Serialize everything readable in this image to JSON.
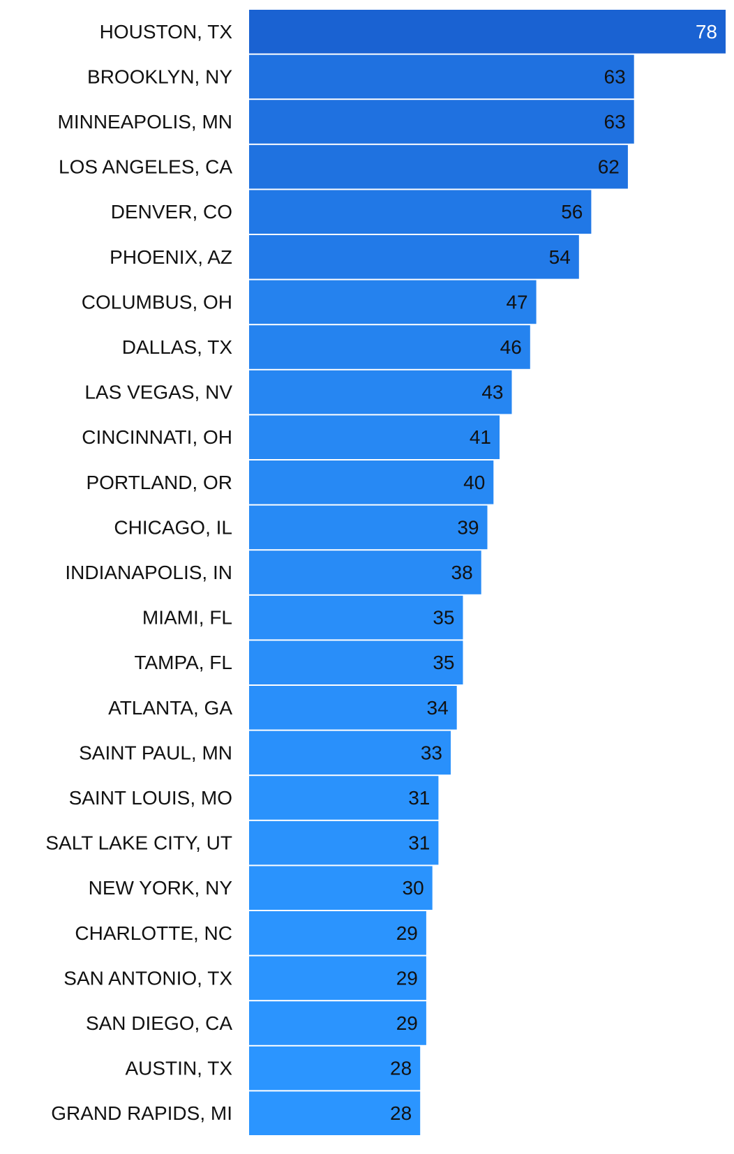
{
  "chart_data": {
    "type": "bar",
    "orientation": "horizontal",
    "categories": [
      "HOUSTON, TX",
      "BROOKLYN, NY",
      "MINNEAPOLIS, MN",
      "LOS ANGELES, CA",
      "DENVER, CO",
      "PHOENIX, AZ",
      "COLUMBUS, OH",
      "DALLAS, TX",
      "LAS VEGAS, NV",
      "CINCINNATI, OH",
      "PORTLAND, OR",
      "CHICAGO, IL",
      "INDIANAPOLIS, IN",
      "MIAMI, FL",
      "TAMPA, FL",
      "ATLANTA, GA",
      "SAINT PAUL, MN",
      "SAINT LOUIS, MO",
      "SALT LAKE CITY, UT",
      "NEW YORK, NY",
      "CHARLOTTE, NC",
      "SAN ANTONIO, TX",
      "SAN DIEGO, CA",
      "AUSTIN, TX",
      "GRAND RAPIDS, MI"
    ],
    "values": [
      78,
      63,
      63,
      62,
      56,
      54,
      47,
      46,
      43,
      41,
      40,
      39,
      38,
      35,
      35,
      34,
      33,
      31,
      31,
      30,
      29,
      29,
      29,
      28,
      28
    ],
    "title": "",
    "xlabel": "",
    "ylabel": "",
    "xlim": [
      0,
      78
    ],
    "grid": false,
    "legend": "none",
    "data_labels": "inside-end",
    "colors": {
      "bar_max": "#1a62d2",
      "bar_min": "#2b95ff",
      "bar_divider": "#ffffff",
      "label_on_max": "#ffffff",
      "label_default": "#111111"
    }
  }
}
